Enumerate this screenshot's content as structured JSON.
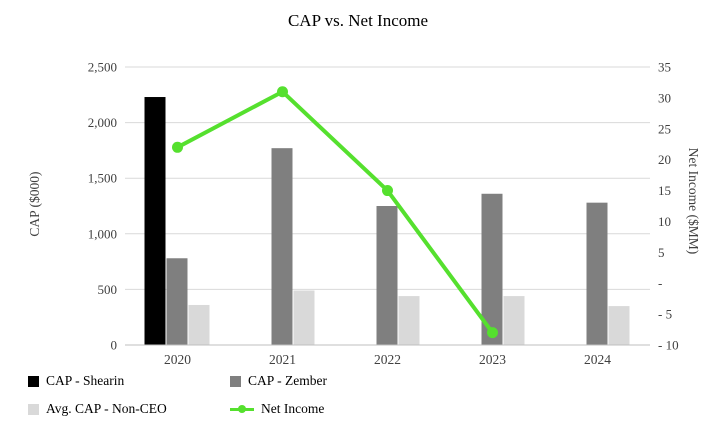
{
  "chart_data": {
    "type": "combo-bar-line",
    "title": "CAP vs. Net Income",
    "categories": [
      "2020",
      "2021",
      "2022",
      "2023",
      "2024"
    ],
    "bar_series": [
      {
        "name": "CAP - Shearin",
        "color": "#000000",
        "values": [
          2230,
          null,
          null,
          null,
          null
        ]
      },
      {
        "name": "CAP - Zember",
        "color": "#7f7f7f",
        "values": [
          780,
          1770,
          1250,
          1360,
          1280
        ]
      },
      {
        "name": "Avg. CAP - Non-CEO",
        "color": "#d9d9d9",
        "values": [
          360,
          490,
          440,
          440,
          350
        ]
      }
    ],
    "line_series": {
      "name": "Net Income",
      "color": "#55e02e",
      "values": [
        22,
        31,
        15,
        -8,
        null
      ]
    },
    "left_axis": {
      "label": "CAP ($000)",
      "min": 0,
      "max": 2500,
      "tick_values": [
        2500,
        2000,
        1500,
        1000,
        500,
        0
      ],
      "tick_labels": [
        "2,500",
        "2,000",
        "1,500",
        "1,000",
        "500",
        "0"
      ]
    },
    "right_axis": {
      "label": "Net Income ($MM)",
      "min": -10,
      "max": 35,
      "tick_values": [
        35,
        30,
        25,
        20,
        15,
        10,
        5,
        0,
        -5,
        -10
      ],
      "tick_labels": [
        "35",
        "30",
        "25",
        "20",
        "15",
        "10",
        "5",
        "-",
        "- 5",
        "- 10"
      ]
    },
    "grid": "horizontal",
    "legend_position": "bottom-left",
    "gridline_color": "#d9d9d9",
    "axis_line_color": "#bfbfbf"
  },
  "legend": {
    "items": [
      {
        "label": "CAP - Shearin",
        "type": "square",
        "color": "#000000"
      },
      {
        "label": "CAP - Zember",
        "type": "square",
        "color": "#7f7f7f"
      },
      {
        "label": "Avg. CAP - Non-CEO",
        "type": "square",
        "color": "#d9d9d9"
      },
      {
        "label": "Net Income",
        "type": "line",
        "color": "#55e02e"
      }
    ]
  }
}
